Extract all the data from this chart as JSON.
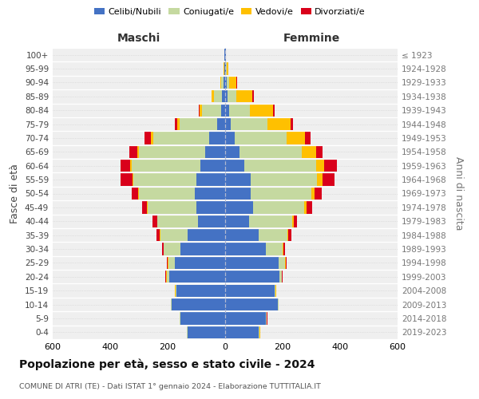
{
  "age_groups": [
    "0-4",
    "5-9",
    "10-14",
    "15-19",
    "20-24",
    "25-29",
    "30-34",
    "35-39",
    "40-44",
    "45-49",
    "50-54",
    "55-59",
    "60-64",
    "65-69",
    "70-74",
    "75-79",
    "80-84",
    "85-89",
    "90-94",
    "95-99",
    "100+"
  ],
  "birth_years": [
    "2019-2023",
    "2014-2018",
    "2009-2013",
    "2004-2008",
    "1999-2003",
    "1994-1998",
    "1989-1993",
    "1984-1988",
    "1979-1983",
    "1974-1978",
    "1969-1973",
    "1964-1968",
    "1959-1963",
    "1954-1958",
    "1949-1953",
    "1944-1948",
    "1939-1943",
    "1934-1938",
    "1929-1933",
    "1924-1928",
    "≤ 1923"
  ],
  "males": {
    "celibe": [
      130,
      155,
      185,
      170,
      195,
      175,
      155,
      130,
      95,
      100,
      105,
      100,
      85,
      70,
      55,
      28,
      15,
      10,
      5,
      2,
      2
    ],
    "coniugato": [
      2,
      2,
      3,
      3,
      8,
      22,
      58,
      95,
      140,
      170,
      195,
      220,
      240,
      230,
      195,
      130,
      65,
      28,
      8,
      2,
      0
    ],
    "vedovo": [
      1,
      1,
      1,
      2,
      2,
      2,
      1,
      2,
      2,
      2,
      3,
      3,
      5,
      5,
      8,
      10,
      8,
      10,
      5,
      2,
      0
    ],
    "divorziato": [
      1,
      1,
      1,
      1,
      2,
      3,
      5,
      12,
      15,
      18,
      22,
      42,
      35,
      28,
      22,
      8,
      5,
      0,
      0,
      0,
      0
    ]
  },
  "females": {
    "nubile": [
      118,
      142,
      182,
      172,
      188,
      185,
      142,
      118,
      82,
      98,
      88,
      88,
      68,
      50,
      32,
      20,
      15,
      8,
      5,
      3,
      2
    ],
    "coniugata": [
      2,
      2,
      3,
      3,
      8,
      22,
      58,
      98,
      152,
      178,
      212,
      232,
      248,
      218,
      182,
      128,
      72,
      32,
      10,
      3,
      0
    ],
    "vedova": [
      1,
      1,
      1,
      2,
      2,
      3,
      3,
      4,
      5,
      8,
      12,
      18,
      28,
      48,
      65,
      80,
      80,
      55,
      25,
      5,
      0
    ],
    "divorziata": [
      1,
      1,
      1,
      1,
      2,
      3,
      5,
      10,
      12,
      20,
      25,
      42,
      45,
      22,
      18,
      8,
      5,
      5,
      3,
      0,
      0
    ]
  },
  "colors": {
    "celibe": "#4472c4",
    "coniugato": "#c5d9a0",
    "vedovo": "#ffc000",
    "divorziato": "#d9001b"
  },
  "xlim": 600,
  "title": "Popolazione per età, sesso e stato civile - 2024",
  "subtitle": "COMUNE DI ATRI (TE) - Dati ISTAT 1° gennaio 2024 - Elaborazione TUTTITALIA.IT",
  "ylabel_left": "Fasce di età",
  "ylabel_right": "Anni di nascita",
  "xlabel_left": "Maschi",
  "xlabel_right": "Femmine",
  "legend_labels": [
    "Celibi/Nubili",
    "Coniugati/e",
    "Vedovi/e",
    "Divorziati/e"
  ],
  "bg_color": "#efefef"
}
